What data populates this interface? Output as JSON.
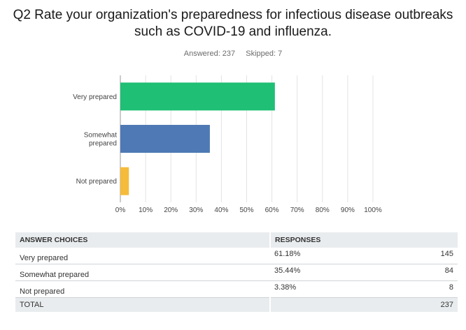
{
  "survey": {
    "title_line1": "Q2 Rate your organization's preparedness for infectious disease outbreaks",
    "title_line2": "such as COVID-19 and influenza.",
    "answered": "Answered: 237",
    "skipped": "Skipped: 7"
  },
  "chart_data": {
    "type": "bar",
    "orientation": "horizontal",
    "categories": [
      "Very prepared",
      "Somewhat prepared",
      "Not prepared"
    ],
    "category_lines": [
      [
        "Very prepared"
      ],
      [
        "Somewhat",
        "prepared"
      ],
      [
        "Not prepared"
      ]
    ],
    "values": [
      61.18,
      35.44,
      3.38
    ],
    "colors": [
      "#1fbf75",
      "#4e79b4",
      "#f5bb3a"
    ],
    "xlim": [
      0,
      100
    ],
    "xticks": [
      "0%",
      "10%",
      "20%",
      "30%",
      "40%",
      "50%",
      "60%",
      "70%",
      "80%",
      "90%",
      "100%"
    ],
    "grid": true
  },
  "table": {
    "headers": [
      "ANSWER CHOICES",
      "RESPONSES",
      ""
    ],
    "rows": [
      {
        "choice": "Very prepared",
        "percent": "61.18%",
        "count": "145"
      },
      {
        "choice": "Somewhat prepared",
        "percent": "35.44%",
        "count": "84"
      },
      {
        "choice": "Not prepared",
        "percent": "3.38%",
        "count": "8"
      }
    ],
    "total_label": "TOTAL",
    "total_count": "237"
  }
}
